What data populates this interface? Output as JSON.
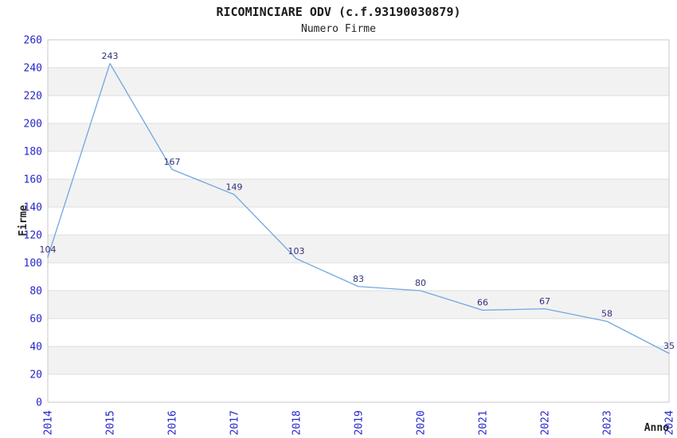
{
  "chart_data": {
    "type": "line",
    "title": "RICOMINCIARE ODV (c.f.93190030879)",
    "subtitle": "Numero Firme",
    "xlabel": "Anno",
    "ylabel": "Firme",
    "categories": [
      "2014",
      "2015",
      "2016",
      "2017",
      "2018",
      "2019",
      "2020",
      "2021",
      "2022",
      "2023",
      "2024"
    ],
    "values": [
      104,
      243,
      167,
      149,
      103,
      83,
      80,
      66,
      67,
      58,
      35
    ],
    "ylim": [
      0,
      260
    ],
    "ytick_step": 20,
    "grid": "horizontal-bands",
    "legend_position": "none",
    "colors": {
      "line": "#72a7e2",
      "tick_label": "#2626cc",
      "data_label": "#30307a",
      "band_gray": "#f2f2f2",
      "band_white": "#ffffff",
      "gridline": "#dddddd",
      "plot_border": "#c9c9c9",
      "title_text": "#1a1a1a"
    }
  }
}
